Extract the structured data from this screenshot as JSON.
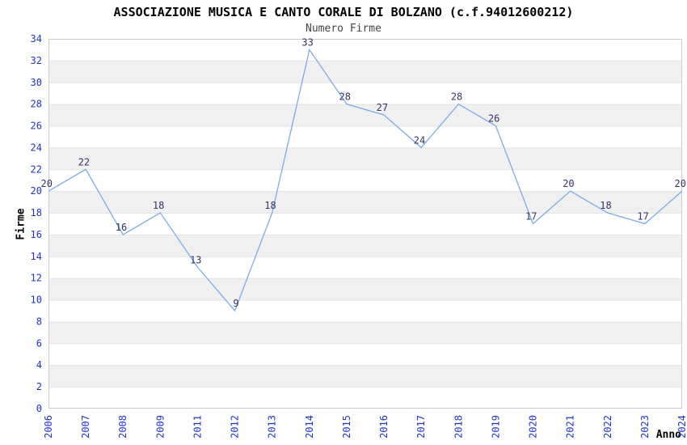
{
  "chart_data": {
    "type": "line",
    "title": "ASSOCIAZIONE MUSICA E CANTO CORALE DI BOLZANO (c.f.94012600212)",
    "subtitle": "Numero Firme",
    "xlabel": "Anno",
    "ylabel": "Firme",
    "categories": [
      "2006",
      "2007",
      "2008",
      "2009",
      "2011",
      "2012",
      "2013",
      "2014",
      "2015",
      "2016",
      "2017",
      "2018",
      "2019",
      "2020",
      "2021",
      "2022",
      "2023",
      "2024"
    ],
    "values": [
      20,
      22,
      16,
      18,
      13,
      9,
      18,
      33,
      28,
      27,
      24,
      28,
      26,
      17,
      20,
      18,
      17,
      20
    ],
    "ylim": [
      0,
      34
    ],
    "ytick_step": 2,
    "grid": true,
    "band_style": "alternating-horizontal",
    "legend": "none",
    "point_labels_visible": true,
    "x_tick_rotation_deg": -90
  },
  "colors": {
    "title": "#000000",
    "subtitle": "#444444",
    "axis_label": "#000000",
    "tick_label": "#2233cc",
    "value_label": "#333366",
    "line": "#7aace8",
    "band": "#f0f0f0",
    "gridline": "#e4e4e4",
    "plot_border": "#cccccc",
    "background": "#ffffff"
  }
}
